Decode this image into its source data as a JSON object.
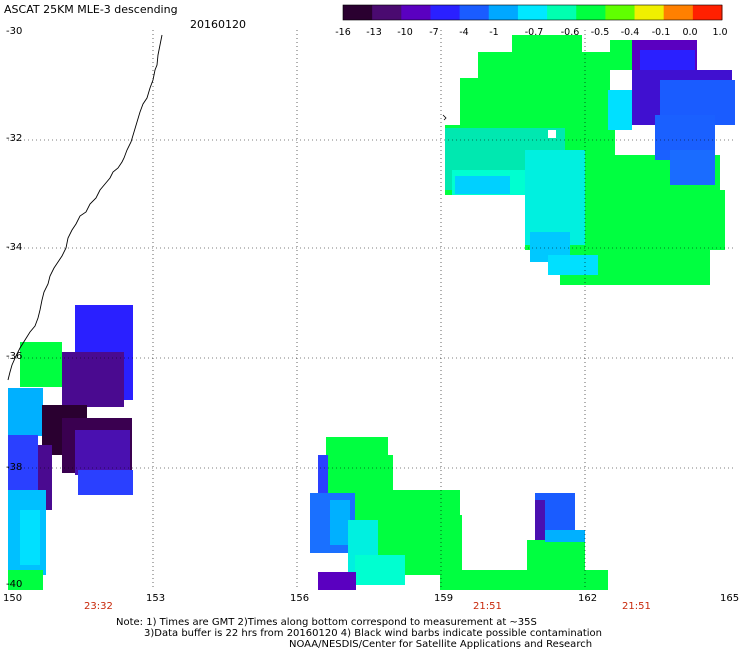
{
  "header": {
    "title": "ASCAT 25KM MLE-3 descending",
    "date": "20160120"
  },
  "colorbar": {
    "labels": [
      "-16",
      "-13",
      "-10",
      "-7",
      "-4",
      "-1",
      "-0.7",
      "-0.6",
      "-0.5",
      "-0.4",
      "-0.1",
      "0.0",
      "1.0"
    ],
    "colors": [
      "#2a0030",
      "#4a0a70",
      "#5a00c0",
      "#2a20ff",
      "#1a5cff",
      "#00a8ff",
      "#00e8ff",
      "#00ffb0",
      "#00ff40",
      "#60ff00",
      "#f0f000",
      "#ff8000",
      "#ff2000"
    ]
  },
  "map": {
    "lon_labels": [
      "150",
      "153",
      "156",
      "159",
      "162",
      "165"
    ],
    "lat_labels": [
      "-30",
      "-32",
      "-34",
      "-36",
      "-38",
      "-40"
    ],
    "time_labels": [
      "23:32",
      "21:51",
      "21:51"
    ]
  },
  "notes": {
    "line1": "Note: 1) Times are GMT 2)Times along bottom correspond to measurement at ~35S",
    "line2": "3)Data buffer is 22 hrs from 20160120 4) Black wind barbs indicate possible contamination",
    "line3": "NOAA/NESDIS/Center for Satellite Applications and Research"
  }
}
